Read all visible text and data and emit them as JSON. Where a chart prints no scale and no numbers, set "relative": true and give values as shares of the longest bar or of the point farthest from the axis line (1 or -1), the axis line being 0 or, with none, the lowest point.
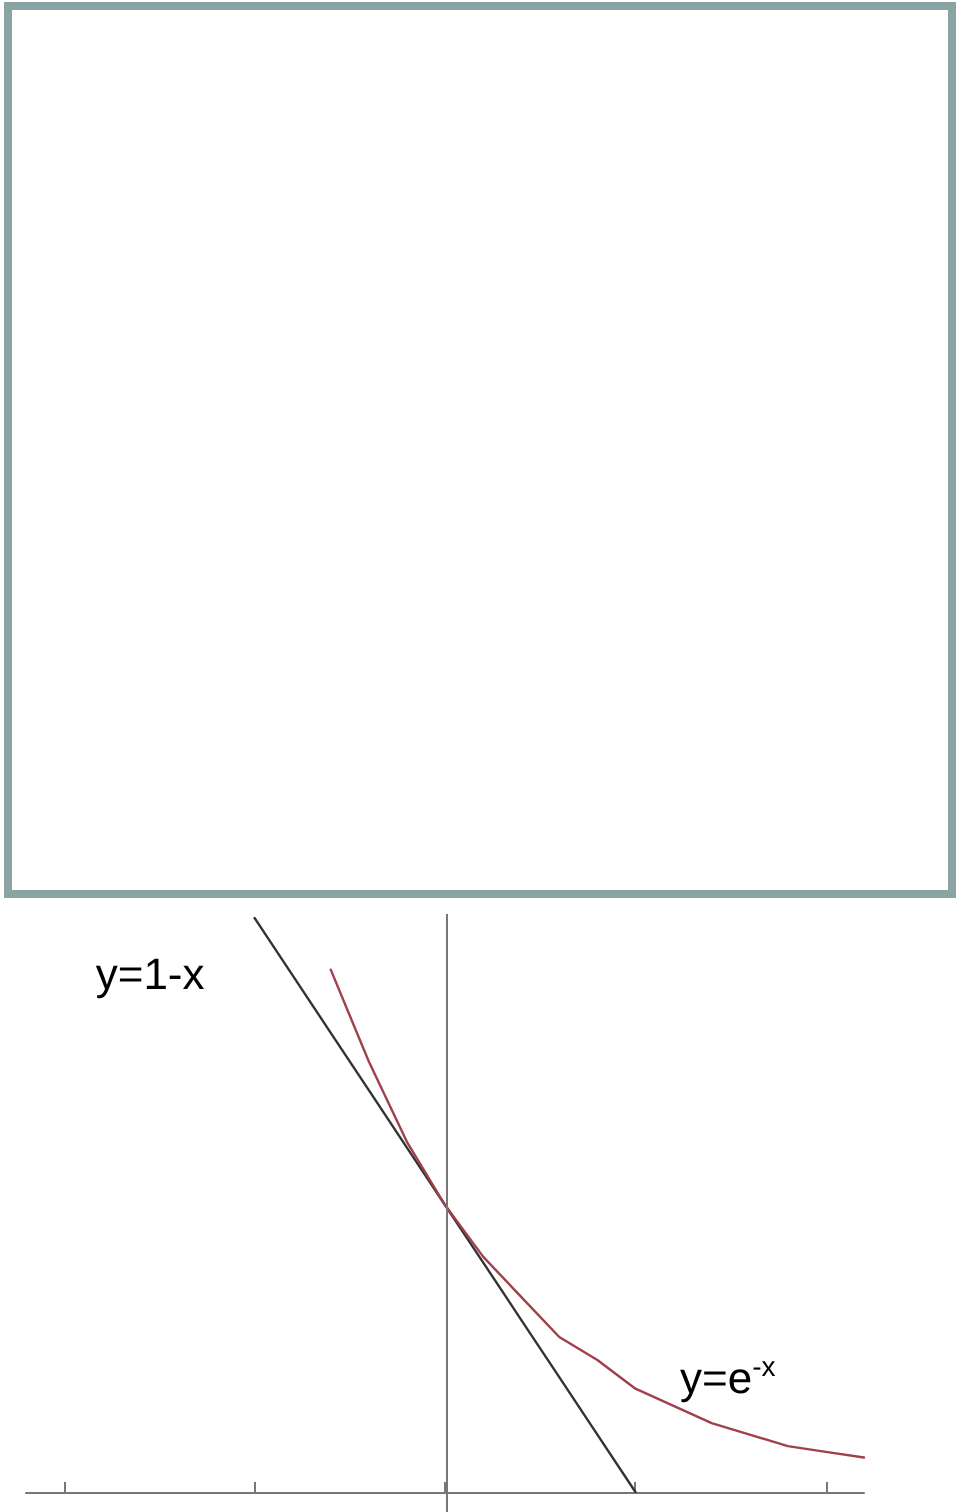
{
  "chart_data": {
    "type": "line",
    "relative": true,
    "categories": [
      null,
      null,
      null,
      null,
      null,
      null,
      null,
      null,
      null,
      null,
      null,
      null,
      null,
      null,
      null,
      null,
      null,
      null,
      null,
      null,
      null,
      null,
      null
    ],
    "series": [
      {
        "name": "y=1-x",
        "color": "#333333",
        "values": [
          null,
          null,
          null,
          null,
          null,
          null,
          1.0,
          0.9,
          0.8,
          0.7,
          0.6,
          0.5,
          0.4,
          0.3,
          0.2,
          0.1,
          0.0,
          null,
          null,
          null,
          null,
          null,
          null
        ]
      },
      {
        "name": "y=e$^{-x}$",
        "color": "#a0404a",
        "values": [
          null,
          null,
          null,
          null,
          null,
          null,
          null,
          null,
          0.91,
          0.75,
          0.61,
          0.5,
          0.41,
          0.34,
          0.27,
          0.23,
          0.18,
          0.15,
          0.12,
          0.1,
          0.08,
          0.07,
          0.06
        ]
      }
    ],
    "grid": false,
    "legend": false,
    "marker": "none",
    "line_style": "solid"
  }
}
